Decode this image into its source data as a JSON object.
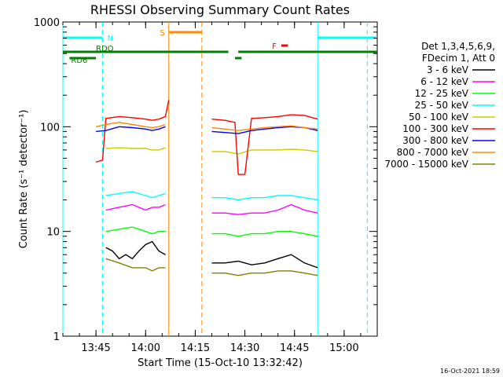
{
  "chart_data": {
    "type": "line",
    "title": "RHESSI Observing Summary Count Rates",
    "xlabel": "Start Time (15-Oct-10 13:32:42)",
    "ylabel": "Count Rate (s⁻¹ detector⁻¹)",
    "x_unit": "minutes of day",
    "x_range": [
      "13:35",
      "15:10"
    ],
    "x_ticks": [
      "13:45",
      "14:00",
      "14:15",
      "14:30",
      "14:45",
      "15:00"
    ],
    "y_scale": "log",
    "y_range": [
      1,
      1000
    ],
    "y_ticks": [
      "1",
      "10",
      "100",
      "1000"
    ],
    "legend_position": "right",
    "legend_header": [
      "Det 1,3,4,5,6,9,",
      "FDecim 1, Att 0"
    ],
    "footer_date": "16-Oct-2021 18:59",
    "series": [
      {
        "name": "3 - 6 keV",
        "color": "#000000",
        "segments": [
          {
            "t": [
              "13:48",
              "13:50",
              "13:52",
              "13:54",
              "13:56",
              "13:58",
              "14:00",
              "14:02",
              "14:04",
              "14:06"
            ],
            "v": [
              7,
              6.5,
              5.5,
              6,
              5.5,
              6.5,
              7.5,
              8,
              6.5,
              6
            ]
          },
          {
            "t": [
              "14:20",
              "14:24",
              "14:28",
              "14:32",
              "14:36",
              "14:40",
              "14:44",
              "14:48",
              "14:52"
            ],
            "v": [
              5,
              5,
              5.2,
              4.8,
              5,
              5.5,
              6,
              5,
              4.5
            ]
          }
        ]
      },
      {
        "name": "6 - 12 keV",
        "color": "#ff00ff",
        "segments": [
          {
            "t": [
              "13:48",
              "13:52",
              "13:56",
              "14:00",
              "14:02",
              "14:04",
              "14:06"
            ],
            "v": [
              16,
              17,
              18,
              16,
              17,
              17,
              18
            ]
          },
          {
            "t": [
              "14:20",
              "14:24",
              "14:28",
              "14:32",
              "14:36",
              "14:40",
              "14:44",
              "14:48",
              "14:52"
            ],
            "v": [
              15,
              15,
              14.5,
              15,
              15,
              16,
              18,
              16,
              15
            ]
          }
        ]
      },
      {
        "name": "12 - 25 keV",
        "color": "#00ff00",
        "segments": [
          {
            "t": [
              "13:48",
              "13:52",
              "13:56",
              "14:00",
              "14:02",
              "14:04",
              "14:06"
            ],
            "v": [
              10,
              10.5,
              11,
              10,
              9.5,
              10,
              10
            ]
          },
          {
            "t": [
              "14:20",
              "14:24",
              "14:28",
              "14:32",
              "14:36",
              "14:40",
              "14:44",
              "14:48",
              "14:52"
            ],
            "v": [
              9.5,
              9.5,
              9,
              9.5,
              9.5,
              10,
              10,
              9.5,
              9
            ]
          }
        ]
      },
      {
        "name": "25 - 50 keV",
        "color": "#00ffff",
        "segments": [
          {
            "t": [
              "13:48",
              "13:52",
              "13:56",
              "14:00",
              "14:02",
              "14:04",
              "14:06"
            ],
            "v": [
              22,
              23,
              24,
              22,
              21,
              22,
              23
            ]
          },
          {
            "t": [
              "14:20",
              "14:24",
              "14:28",
              "14:32",
              "14:36",
              "14:40",
              "14:44",
              "14:48",
              "14:52"
            ],
            "v": [
              21,
              21,
              20,
              21,
              21,
              22,
              22,
              21,
              20
            ]
          }
        ]
      },
      {
        "name": "50 - 100 keV",
        "color": "#cccc00",
        "segments": [
          {
            "t": [
              "13:48",
              "13:52",
              "13:56",
              "14:00",
              "14:02",
              "14:04",
              "14:06"
            ],
            "v": [
              62,
              63,
              62,
              62,
              60,
              60,
              63
            ]
          },
          {
            "t": [
              "14:20",
              "14:24",
              "14:28",
              "14:32",
              "14:36",
              "14:40",
              "14:44",
              "14:48",
              "14:52"
            ],
            "v": [
              58,
              58,
              55,
              60,
              60,
              60,
              61,
              60,
              58
            ]
          }
        ]
      },
      {
        "name": "100 - 300 keV",
        "color": "#ff0000",
        "segments": [
          {
            "t": [
              "13:45",
              "13:47",
              "13:48",
              "13:52",
              "13:56",
              "14:00",
              "14:02",
              "14:04",
              "14:06",
              "14:07"
            ],
            "v": [
              46,
              48,
              120,
              125,
              122,
              118,
              115,
              118,
              125,
              180
            ]
          },
          {
            "t": [
              "14:20",
              "14:24",
              "14:27",
              "14:28",
              "14:30",
              "14:32",
              "14:36",
              "14:40",
              "14:44",
              "14:48",
              "14:52"
            ],
            "v": [
              118,
              115,
              110,
              35,
              35,
              120,
              122,
              125,
              130,
              128,
              118
            ]
          }
        ]
      },
      {
        "name": "300 - 800 keV",
        "color": "#0000ff",
        "segments": [
          {
            "t": [
              "13:45",
              "13:48",
              "13:52",
              "13:56",
              "14:00",
              "14:02",
              "14:04",
              "14:06"
            ],
            "v": [
              90,
              92,
              100,
              98,
              95,
              92,
              95,
              100
            ]
          },
          {
            "t": [
              "14:20",
              "14:24",
              "14:28",
              "14:32",
              "14:36",
              "14:40",
              "14:44",
              "14:48",
              "14:52"
            ],
            "v": [
              90,
              88,
              86,
              92,
              95,
              98,
              100,
              98,
              92
            ]
          }
        ]
      },
      {
        "name": "800 - 7000 keV",
        "color": "#ff8800",
        "segments": [
          {
            "t": [
              "13:45",
              "13:48",
              "13:52",
              "13:56",
              "14:00",
              "14:02",
              "14:04",
              "14:06"
            ],
            "v": [
              100,
              105,
              110,
              105,
              100,
              98,
              100,
              105
            ]
          },
          {
            "t": [
              "14:20",
              "14:24",
              "14:28",
              "14:32",
              "14:36",
              "14:40",
              "14:44",
              "14:48",
              "14:52"
            ],
            "v": [
              98,
              95,
              92,
              95,
              98,
              100,
              102,
              98,
              95
            ]
          }
        ]
      },
      {
        "name": "7000 - 15000 keV",
        "color": "#808000",
        "segments": [
          {
            "t": [
              "13:48",
              "13:52",
              "13:56",
              "14:00",
              "14:02",
              "14:04",
              "14:06"
            ],
            "v": [
              5.5,
              5,
              4.5,
              4.5,
              4.2,
              4.5,
              4.5
            ]
          },
          {
            "t": [
              "14:20",
              "14:24",
              "14:28",
              "14:32",
              "14:36",
              "14:40",
              "14:44",
              "14:48",
              "14:52"
            ],
            "v": [
              4,
              4,
              3.8,
              4,
              4,
              4.2,
              4.2,
              4,
              3.8
            ]
          }
        ]
      }
    ],
    "flag_bars": [
      {
        "label": "N",
        "color": "#00ffff",
        "level": "top",
        "spans": [
          [
            "13:35",
            "13:47"
          ],
          [
            "14:52",
            "15:10"
          ]
        ]
      },
      {
        "label": "S",
        "color": "#ff8800",
        "level": "upper",
        "spans": [
          [
            "14:07",
            "14:17"
          ]
        ]
      },
      {
        "label": "F",
        "color": "#ff0000",
        "level": "mid",
        "spans": [
          [
            "14:41",
            "14:43"
          ]
        ]
      },
      {
        "label": "RDO",
        "color": "#008000",
        "level": "rdo",
        "spans": [
          [
            "13:35",
            "14:25"
          ],
          [
            "14:28",
            "15:10"
          ]
        ]
      },
      {
        "label": "RD6",
        "color": "#008000",
        "level": "rd6",
        "spans": [
          [
            "13:37",
            "13:45"
          ],
          [
            "14:27",
            "14:29"
          ]
        ]
      }
    ],
    "vertical_markers": [
      {
        "t": "13:35",
        "color": "#00ffff",
        "style": "solid"
      },
      {
        "t": "13:47",
        "color": "#00ffff",
        "style": "dashed"
      },
      {
        "t": "14:07",
        "color": "#ff8800",
        "style": "solid"
      },
      {
        "t": "14:17",
        "color": "#ff8800",
        "style": "dashed"
      },
      {
        "t": "14:52",
        "color": "#00ffff",
        "style": "solid"
      },
      {
        "t": "15:07",
        "color": "#00ffff",
        "style": "dashed"
      }
    ]
  }
}
